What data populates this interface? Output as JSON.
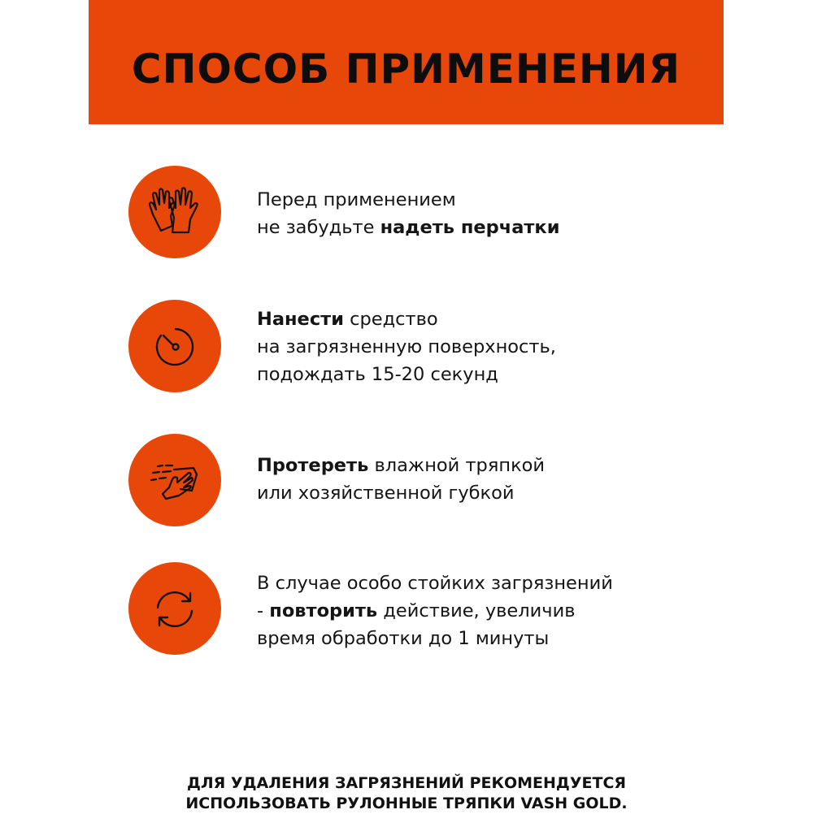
{
  "title": "СПОСОБ ПРИМЕНЕНИЯ",
  "accent_color": "#E8470A",
  "steps": [
    {
      "icon": "gloves-icon",
      "lines": [
        [
          {
            "t": "Перед применением"
          }
        ],
        [
          {
            "t": "не забудьте "
          },
          {
            "b": "надеть перчатки"
          }
        ]
      ]
    },
    {
      "icon": "timer-icon",
      "lines": [
        [
          {
            "b": "Нанести"
          },
          {
            "t": " средство"
          }
        ],
        [
          {
            "t": "на загрязненную поверхность,"
          }
        ],
        [
          {
            "t": "подождать 15-20 секунд"
          }
        ]
      ]
    },
    {
      "icon": "wiping-hand-icon",
      "lines": [
        [
          {
            "b": "Протереть"
          },
          {
            "t": " влажной тряпкой"
          }
        ],
        [
          {
            "t": "или хозяйственной губкой"
          }
        ]
      ]
    },
    {
      "icon": "repeat-arrows-icon",
      "lines": [
        [
          {
            "t": "В случае особо стойких загрязнений"
          }
        ],
        [
          {
            "t": "- "
          },
          {
            "b": "повторить"
          },
          {
            "t": " действие, увеличив"
          }
        ],
        [
          {
            "t": "время обработки до 1 минуты"
          }
        ]
      ]
    }
  ],
  "footer": {
    "line1": "ДЛЯ УДАЛЕНИЯ ЗАГРЯЗНЕНИЙ РЕКОМЕНДУЕТСЯ",
    "line2": "ИСПОЛЬЗОВАТЬ РУЛОННЫЕ ТРЯПКИ VASH GOLD."
  }
}
